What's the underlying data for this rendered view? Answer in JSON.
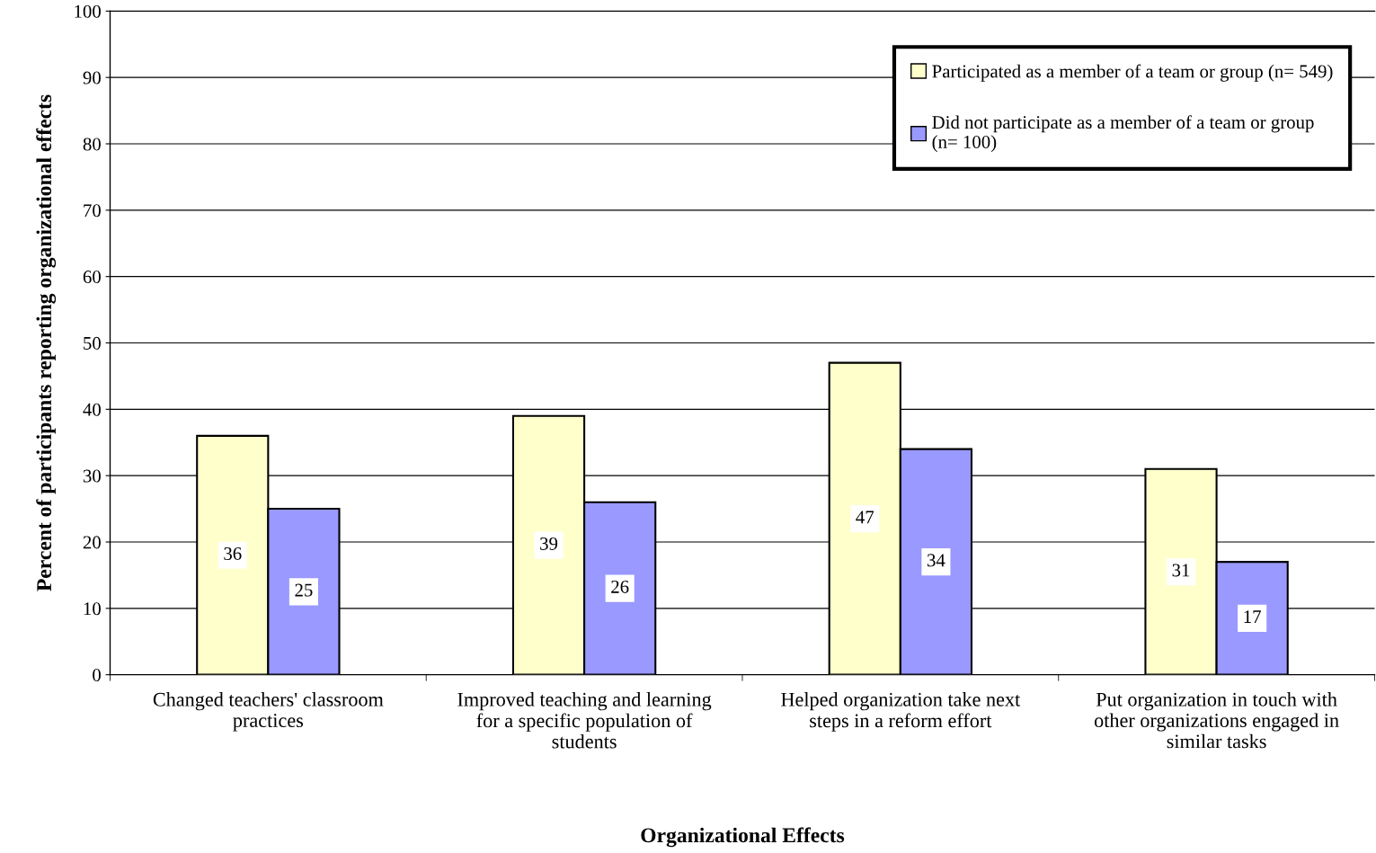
{
  "chart_data": {
    "type": "bar",
    "xlabel": "Organizational Effects",
    "ylabel": "Percent of participants reporting organizational effects",
    "categories": [
      "Changed teachers' classroom practices",
      "Improved teaching and learning for a specific population of students",
      "Helped organization take next steps in a reform effort",
      "Put organization in touch with other organizations engaged in similar tasks"
    ],
    "series": [
      {
        "name": "Participated as a member of a team or group (n= 549)",
        "color": "#ffffcc",
        "values": [
          36,
          39,
          47,
          31
        ]
      },
      {
        "name": "Did not participate as a member of a team or group (n= 100)",
        "color": "#9999ff",
        "values": [
          25,
          26,
          34,
          17
        ]
      }
    ],
    "ylim": [
      0,
      100
    ],
    "yticks": [
      0,
      10,
      20,
      30,
      40,
      50,
      60,
      70,
      80,
      90,
      100
    ],
    "grid": "y",
    "legend": "top right",
    "data_labels": true
  }
}
